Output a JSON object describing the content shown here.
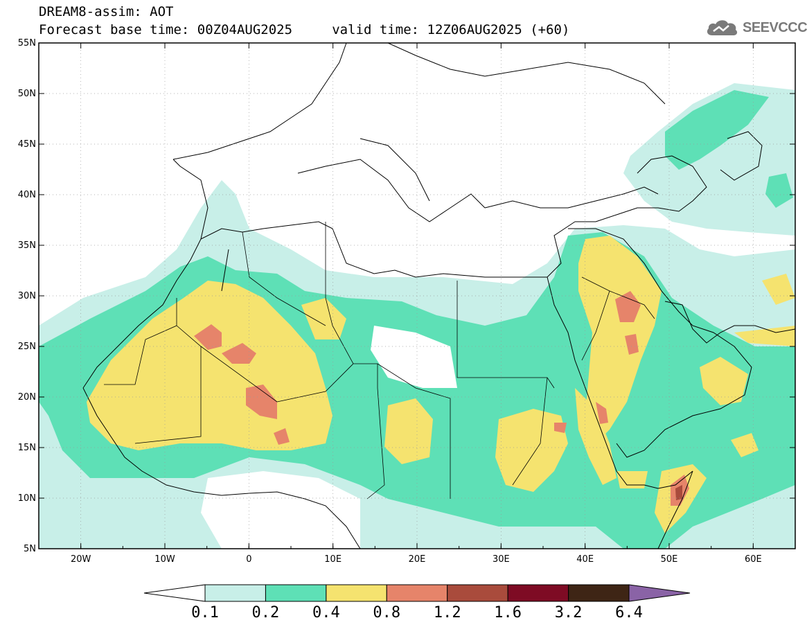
{
  "header": {
    "title_line1": "DREAM8-assim: AOT",
    "title_line2": "Forecast base time: 00Z04AUG2025     valid time: 12Z06AUG2025 (+60)"
  },
  "logo": {
    "text": "SEEVCCC",
    "icon": "cloud-icon",
    "color": "#7a7a7a"
  },
  "map": {
    "lon_range": [
      -25,
      65
    ],
    "lat_range": [
      5,
      55
    ],
    "lat_labels": [
      "55N",
      "50N",
      "45N",
      "40N",
      "35N",
      "30N",
      "25N",
      "20N",
      "15N",
      "10N",
      "5N"
    ],
    "lon_labels": [
      "20W",
      "10W",
      "0",
      "10E",
      "20E",
      "30E",
      "40E",
      "50E",
      "60E"
    ],
    "colors": {
      "c0": "#c8efe8",
      "c1": "#5ee0b6",
      "c2": "#f5e36f",
      "c3": "#e6846a",
      "c4": "#a94b3c",
      "c5": "#7e0b24",
      "c6": "#3e2515",
      "c7": "#8a63a6"
    }
  },
  "legend": {
    "labels": [
      "0.1",
      "0.2",
      "0.4",
      "0.8",
      "1.2",
      "1.6",
      "3.2",
      "6.4"
    ],
    "colors": [
      "#c8efe8",
      "#5ee0b6",
      "#f5e36f",
      "#e6846a",
      "#a94b3c",
      "#7e0b24",
      "#3e2515"
    ],
    "under_color": "#ffffff",
    "over_color": "#8a63a6"
  }
}
